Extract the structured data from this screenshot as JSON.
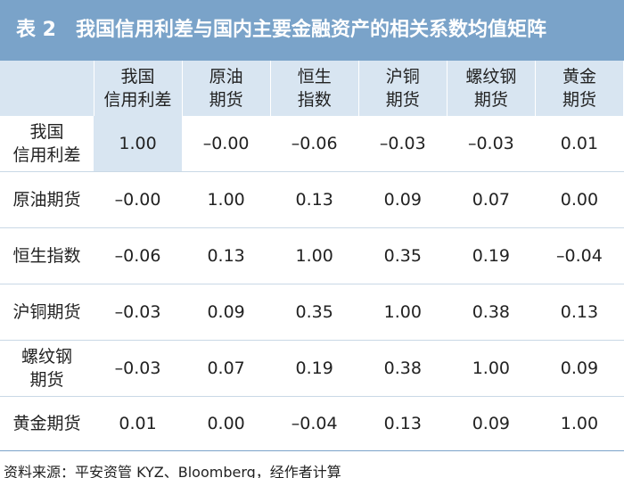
{
  "header": {
    "title": "表 2　我国信用利差与国内主要金融资产的相关系数均值矩阵"
  },
  "table": {
    "columns": [
      "我国\n信用利差",
      "原油\n期货",
      "恒生\n指数",
      "沪铜\n期货",
      "螺纹钢\n期货",
      "黄金\n期货"
    ],
    "rows": [
      [
        "我国\n信用利差",
        "1.00",
        "–0.00",
        "–0.06",
        "–0.03",
        "–0.03",
        "0.01"
      ],
      [
        "原油期货",
        "–0.00",
        "1.00",
        "0.13",
        "0.09",
        "0.07",
        "0.00"
      ],
      [
        "恒生指数",
        "–0.06",
        "0.13",
        "1.00",
        "0.35",
        "0.19",
        "–0.04"
      ],
      [
        "沪铜期货",
        "–0.03",
        "0.09",
        "0.35",
        "1.00",
        "0.38",
        "0.13"
      ],
      [
        "螺纹钢\n期货",
        "–0.03",
        "0.07",
        "0.19",
        "0.38",
        "1.00",
        "0.09"
      ],
      [
        "黄金期货",
        "0.01",
        "0.00",
        "–0.04",
        "0.13",
        "0.09",
        "1.00"
      ]
    ]
  },
  "footer": {
    "source": "资料来源：平安资管 KYZ、Bloomberg，经作者计算"
  }
}
